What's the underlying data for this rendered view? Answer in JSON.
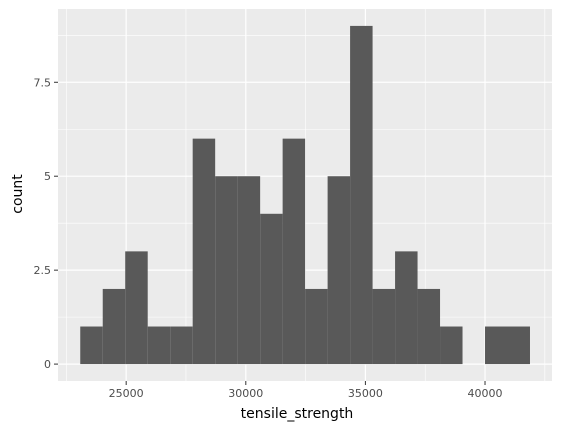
{
  "chart_data": {
    "type": "histogram",
    "xlabel": "tensile_strength",
    "ylabel": "count",
    "bin_width": 940,
    "bins": [
      {
        "x0": 23080,
        "x1": 24020,
        "count": 1
      },
      {
        "x0": 24020,
        "x1": 24960,
        "count": 2
      },
      {
        "x0": 24960,
        "x1": 25900,
        "count": 3
      },
      {
        "x0": 25900,
        "x1": 26840,
        "count": 1
      },
      {
        "x0": 26840,
        "x1": 27780,
        "count": 1
      },
      {
        "x0": 27780,
        "x1": 28720,
        "count": 6
      },
      {
        "x0": 28720,
        "x1": 29660,
        "count": 5
      },
      {
        "x0": 29660,
        "x1": 30600,
        "count": 5
      },
      {
        "x0": 30600,
        "x1": 31540,
        "count": 4
      },
      {
        "x0": 31540,
        "x1": 32480,
        "count": 6
      },
      {
        "x0": 32480,
        "x1": 33420,
        "count": 2
      },
      {
        "x0": 33420,
        "x1": 34360,
        "count": 5
      },
      {
        "x0": 34360,
        "x1": 35300,
        "count": 9
      },
      {
        "x0": 35300,
        "x1": 36240,
        "count": 2
      },
      {
        "x0": 36240,
        "x1": 37180,
        "count": 3
      },
      {
        "x0": 37180,
        "x1": 38120,
        "count": 2
      },
      {
        "x0": 38120,
        "x1": 39060,
        "count": 1
      },
      {
        "x0": 39060,
        "x1": 40000,
        "count": 0
      },
      {
        "x0": 40000,
        "x1": 40940,
        "count": 1
      },
      {
        "x0": 40940,
        "x1": 41880,
        "count": 1
      }
    ],
    "x_ticks": [
      25000,
      30000,
      35000,
      40000
    ],
    "x_tick_labels": [
      "25000",
      "30000",
      "35000",
      "40000"
    ],
    "y_ticks": [
      0,
      2.5,
      5,
      7.5
    ],
    "y_tick_labels": [
      "0",
      "2.5",
      "5",
      "7.5"
    ],
    "xlim": [
      22150,
      42800
    ],
    "ylim": [
      -0.45,
      9.45
    ],
    "grid": true,
    "legend": "none",
    "colors": {
      "bar": "#595959",
      "panel": "#ebebeb",
      "grid_major": "#ffffff",
      "tick_mark": "#333333"
    }
  }
}
